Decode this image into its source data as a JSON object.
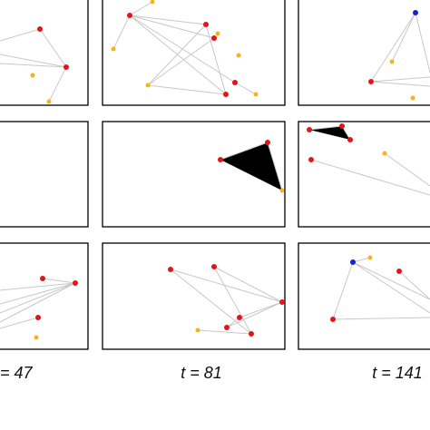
{
  "panel_labels": [
    "= 47",
    "t = 81",
    "t = 141"
  ]
}
